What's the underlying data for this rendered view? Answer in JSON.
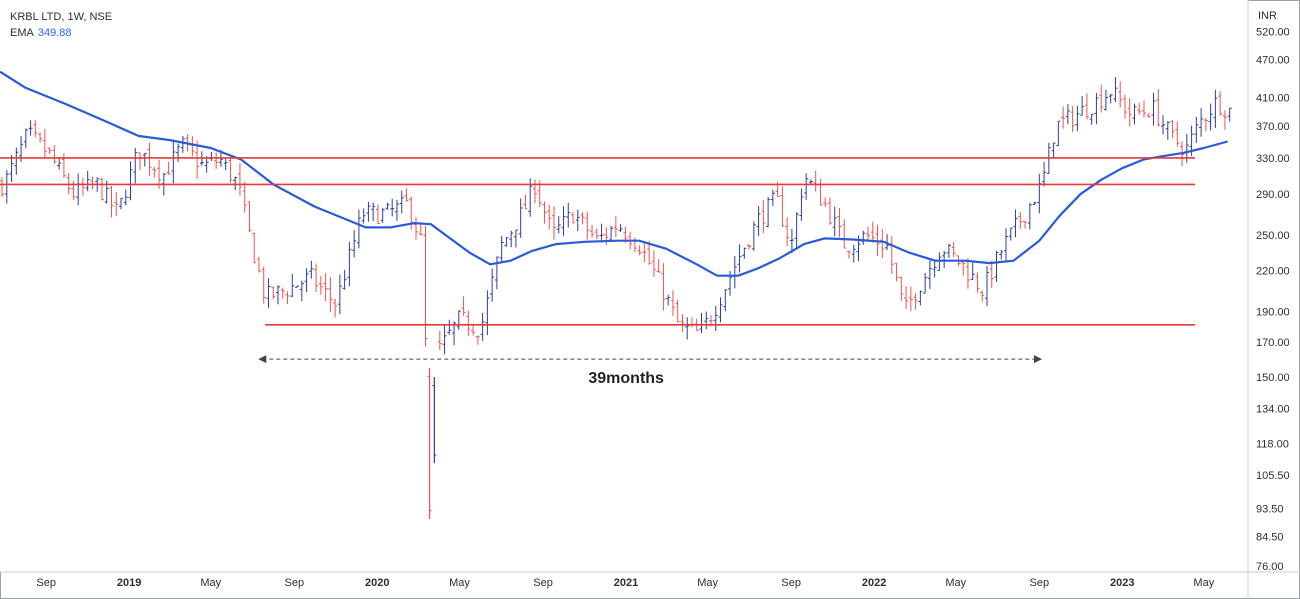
{
  "header": {
    "symbol_line": "KRBL LTD, 1W, NSE",
    "ema_label": "EMA",
    "ema_value": "349.88"
  },
  "colors": {
    "up_bar": "#2a3f9e",
    "down_bar": "#ef5350",
    "ema_line": "#2a5bd7",
    "level_line": "#e53935",
    "arrow": "#444444"
  },
  "chart_data": {
    "type": "ohlc",
    "title": "KRBL LTD, 1W, NSE",
    "currency": "INR",
    "scale": "log",
    "ylim": [
      76,
      570
    ],
    "y_ticks": [
      "520.00",
      "470.00",
      "410.00",
      "370.00",
      "330.00",
      "290.00",
      "250.00",
      "220.00",
      "190.00",
      "170.00",
      "150.00",
      "134.00",
      "118.00",
      "105.50",
      "93.50",
      "84.50",
      "76.00"
    ],
    "x_ticks": [
      "Sep",
      "2019",
      "May",
      "Sep",
      "2020",
      "May",
      "Sep",
      "2021",
      "May",
      "Sep",
      "2022",
      "May",
      "Sep",
      "2023",
      "May"
    ],
    "x_tick_dates": [
      "2018-09-01",
      "2019-01-01",
      "2019-05-01",
      "2019-09-01",
      "2020-01-01",
      "2020-05-01",
      "2020-09-01",
      "2021-01-01",
      "2021-05-01",
      "2021-09-01",
      "2022-01-01",
      "2022-05-01",
      "2022-09-01",
      "2023-01-01",
      "2023-05-01"
    ],
    "bold_x_ticks": [
      "2019",
      "2020",
      "2021",
      "2022",
      "2023"
    ],
    "anchors": [
      {
        "date": "2018-07-01",
        "price": 300
      },
      {
        "date": "2018-08-05",
        "price": 360
      },
      {
        "date": "2018-09-05",
        "price": 335
      },
      {
        "date": "2018-10-10",
        "price": 290
      },
      {
        "date": "2018-11-15",
        "price": 300
      },
      {
        "date": "2018-12-15",
        "price": 270
      },
      {
        "date": "2019-01-15",
        "price": 340
      },
      {
        "date": "2019-02-20",
        "price": 310
      },
      {
        "date": "2019-03-20",
        "price": 345
      },
      {
        "date": "2019-04-20",
        "price": 320
      },
      {
        "date": "2019-05-15",
        "price": 328
      },
      {
        "date": "2019-06-10",
        "price": 300
      },
      {
        "date": "2019-07-01",
        "price": 240
      },
      {
        "date": "2019-07-20",
        "price": 200
      },
      {
        "date": "2019-08-20",
        "price": 205
      },
      {
        "date": "2019-09-25",
        "price": 215
      },
      {
        "date": "2019-11-01",
        "price": 195
      },
      {
        "date": "2019-12-10",
        "price": 270
      },
      {
        "date": "2020-01-15",
        "price": 270
      },
      {
        "date": "2020-02-15",
        "price": 280
      },
      {
        "date": "2020-03-05",
        "price": 245
      },
      {
        "date": "2020-03-20",
        "price": 112
      },
      {
        "date": "2020-04-01",
        "price": 165
      },
      {
        "date": "2020-05-01",
        "price": 185
      },
      {
        "date": "2020-06-01",
        "price": 178
      },
      {
        "date": "2020-07-01",
        "price": 240
      },
      {
        "date": "2020-08-05",
        "price": 275
      },
      {
        "date": "2020-08-20",
        "price": 300
      },
      {
        "date": "2020-09-15",
        "price": 250
      },
      {
        "date": "2020-10-15",
        "price": 270
      },
      {
        "date": "2020-11-20",
        "price": 245
      },
      {
        "date": "2020-12-20",
        "price": 260
      },
      {
        "date": "2021-01-20",
        "price": 242
      },
      {
        "date": "2021-02-20",
        "price": 210
      },
      {
        "date": "2021-03-20",
        "price": 180
      },
      {
        "date": "2021-04-20",
        "price": 175
      },
      {
        "date": "2021-05-15",
        "price": 195
      },
      {
        "date": "2021-06-15",
        "price": 230
      },
      {
        "date": "2021-07-15",
        "price": 265
      },
      {
        "date": "2021-08-10",
        "price": 285
      },
      {
        "date": "2021-09-01",
        "price": 240
      },
      {
        "date": "2021-09-20",
        "price": 310
      },
      {
        "date": "2021-10-20",
        "price": 280
      },
      {
        "date": "2021-11-20",
        "price": 240
      },
      {
        "date": "2021-12-20",
        "price": 250
      },
      {
        "date": "2022-01-20",
        "price": 240
      },
      {
        "date": "2022-02-15",
        "price": 190
      },
      {
        "date": "2022-03-10",
        "price": 210
      },
      {
        "date": "2022-04-10",
        "price": 240
      },
      {
        "date": "2022-05-10",
        "price": 225
      },
      {
        "date": "2022-06-10",
        "price": 205
      },
      {
        "date": "2022-07-10",
        "price": 240
      },
      {
        "date": "2022-08-10",
        "price": 270
      },
      {
        "date": "2022-09-05",
        "price": 300
      },
      {
        "date": "2022-09-25",
        "price": 370
      },
      {
        "date": "2022-10-25",
        "price": 385
      },
      {
        "date": "2022-11-25",
        "price": 405
      },
      {
        "date": "2022-12-15",
        "price": 420
      },
      {
        "date": "2023-01-15",
        "price": 385
      },
      {
        "date": "2023-02-15",
        "price": 395
      },
      {
        "date": "2023-03-15",
        "price": 355
      },
      {
        "date": "2023-04-05",
        "price": 340
      },
      {
        "date": "2023-04-25",
        "price": 375
      },
      {
        "date": "2023-05-20",
        "price": 405
      },
      {
        "date": "2023-06-05",
        "price": 392
      }
    ],
    "spikes": [
      {
        "date": "2020-03-18",
        "low": 90,
        "high": 155
      },
      {
        "date": "2020-03-25",
        "low": 110,
        "high": 150
      }
    ],
    "ema_points": [
      {
        "date": "2018-06-25",
        "price": 450
      },
      {
        "date": "2018-08-01",
        "price": 425
      },
      {
        "date": "2018-10-01",
        "price": 400
      },
      {
        "date": "2018-12-01",
        "price": 375
      },
      {
        "date": "2019-01-15",
        "price": 357
      },
      {
        "date": "2019-03-01",
        "price": 352
      },
      {
        "date": "2019-05-01",
        "price": 342
      },
      {
        "date": "2019-06-15",
        "price": 328
      },
      {
        "date": "2019-08-01",
        "price": 300
      },
      {
        "date": "2019-10-01",
        "price": 277
      },
      {
        "date": "2019-12-15",
        "price": 257
      },
      {
        "date": "2020-01-20",
        "price": 257
      },
      {
        "date": "2020-02-25",
        "price": 261
      },
      {
        "date": "2020-03-20",
        "price": 260
      },
      {
        "date": "2020-04-15",
        "price": 248
      },
      {
        "date": "2020-05-15",
        "price": 235
      },
      {
        "date": "2020-06-15",
        "price": 225
      },
      {
        "date": "2020-07-15",
        "price": 228
      },
      {
        "date": "2020-08-15",
        "price": 236
      },
      {
        "date": "2020-09-20",
        "price": 242
      },
      {
        "date": "2020-11-01",
        "price": 244
      },
      {
        "date": "2020-12-20",
        "price": 245
      },
      {
        "date": "2021-01-20",
        "price": 245
      },
      {
        "date": "2021-03-01",
        "price": 238
      },
      {
        "date": "2021-04-15",
        "price": 225
      },
      {
        "date": "2021-05-15",
        "price": 216
      },
      {
        "date": "2021-06-15",
        "price": 216
      },
      {
        "date": "2021-07-15",
        "price": 222
      },
      {
        "date": "2021-08-15",
        "price": 230
      },
      {
        "date": "2021-09-20",
        "price": 242
      },
      {
        "date": "2021-10-20",
        "price": 247
      },
      {
        "date": "2021-12-01",
        "price": 246
      },
      {
        "date": "2022-01-15",
        "price": 244
      },
      {
        "date": "2022-02-20",
        "price": 235
      },
      {
        "date": "2022-04-01",
        "price": 228
      },
      {
        "date": "2022-05-15",
        "price": 228
      },
      {
        "date": "2022-06-20",
        "price": 226
      },
      {
        "date": "2022-07-25",
        "price": 228
      },
      {
        "date": "2022-09-01",
        "price": 245
      },
      {
        "date": "2022-10-01",
        "price": 268
      },
      {
        "date": "2022-11-01",
        "price": 290
      },
      {
        "date": "2022-12-01",
        "price": 305
      },
      {
        "date": "2023-01-01",
        "price": 318
      },
      {
        "date": "2023-02-01",
        "price": 328
      },
      {
        "date": "2023-03-01",
        "price": 332
      },
      {
        "date": "2023-04-01",
        "price": 336
      },
      {
        "date": "2023-05-01",
        "price": 342
      },
      {
        "date": "2023-06-05",
        "price": 350
      }
    ],
    "levels": [
      {
        "price": 330,
        "from": "2018-06-25",
        "to": "2023-06-30"
      },
      {
        "price": 300,
        "from": "2018-06-25",
        "to": "2023-06-30"
      },
      {
        "price": 181,
        "from": "2019-07-20",
        "to": "2023-06-30"
      }
    ],
    "annotation": {
      "text": "39months",
      "from": "2019-07-10",
      "to": "2022-09-05",
      "price": 160
    }
  }
}
